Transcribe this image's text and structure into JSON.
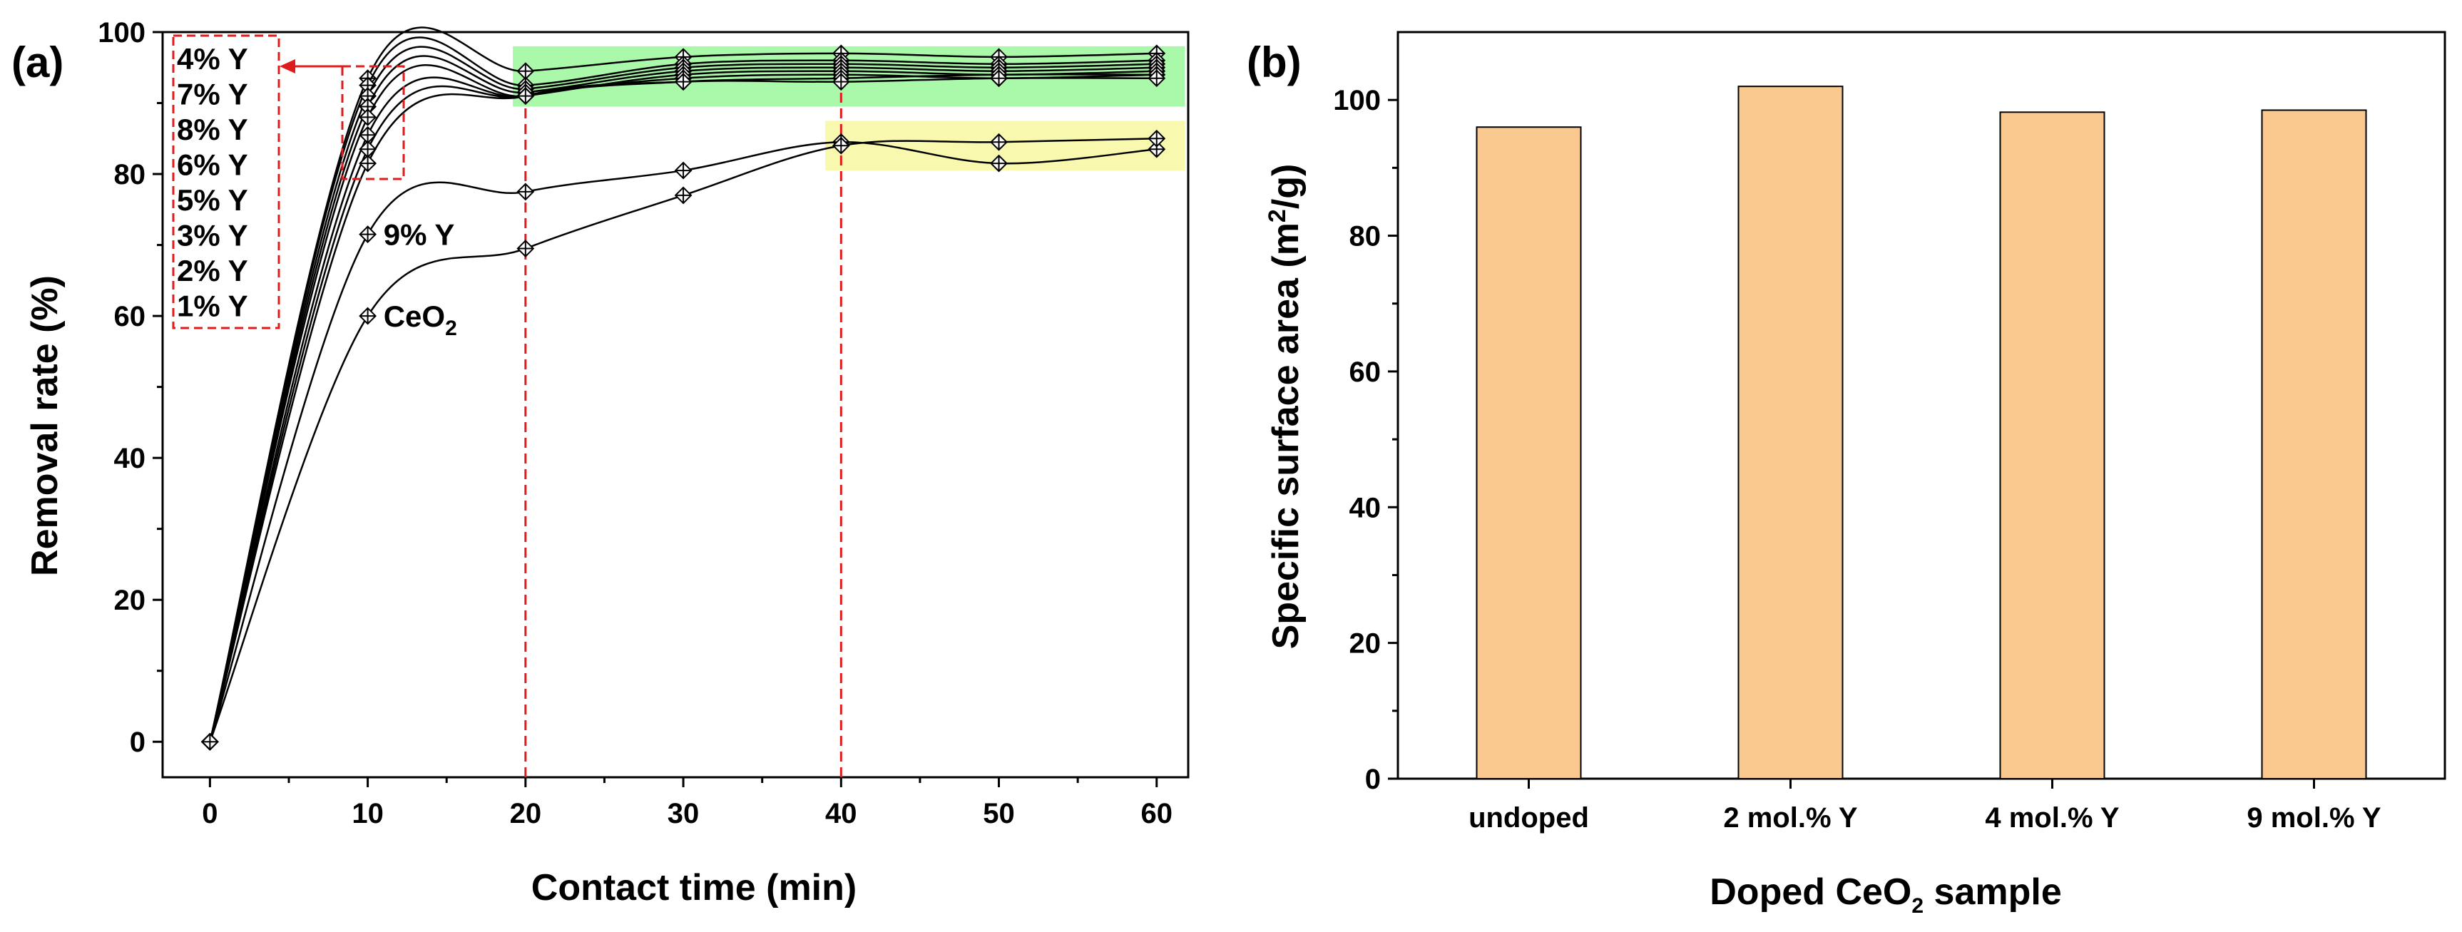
{
  "chart_data": [
    {
      "panel_label": "(a)",
      "type": "line",
      "xlabel": "Contact time (min)",
      "ylabel": "Removal rate (%)",
      "xlim": [
        -3,
        62
      ],
      "ylim": [
        -5,
        100
      ],
      "xticks": [
        0,
        10,
        20,
        30,
        40,
        50,
        60
      ],
      "yticks": [
        0,
        20,
        40,
        60,
        80,
        100
      ],
      "x": [
        0,
        10,
        20,
        30,
        40,
        50,
        60
      ],
      "series": [
        {
          "name": "4% Y",
          "values": [
            0,
            93.5,
            94.5,
            96.5,
            97,
            96.5,
            97
          ]
        },
        {
          "name": "7% Y",
          "values": [
            0,
            92.5,
            92.5,
            95.5,
            96,
            95.5,
            96
          ]
        },
        {
          "name": "8% Y",
          "values": [
            0,
            91,
            92,
            95,
            95.5,
            95,
            95.5
          ]
        },
        {
          "name": "6% Y",
          "values": [
            0,
            89.5,
            91.5,
            94.5,
            95,
            94.5,
            95
          ]
        },
        {
          "name": "5% Y",
          "values": [
            0,
            88,
            91,
            94,
            94.5,
            94,
            94.5
          ]
        },
        {
          "name": "3% Y",
          "values": [
            0,
            85.5,
            91,
            93.5,
            94,
            93.5,
            94
          ]
        },
        {
          "name": "2% Y",
          "values": [
            0,
            83.5,
            91,
            93,
            93.5,
            94,
            94
          ]
        },
        {
          "name": "1% Y",
          "values": [
            0,
            81.5,
            91,
            93,
            93,
            93.5,
            93.5
          ]
        },
        {
          "name": "9% Y",
          "values": [
            0,
            71.5,
            77.5,
            80.5,
            84.5,
            81.5,
            83.5
          ]
        },
        {
          "name": "CeO2",
          "values": [
            0,
            60,
            69.5,
            77,
            84,
            84.5,
            85
          ]
        }
      ],
      "legend_box_entries": [
        "4% Y",
        "7% Y",
        "8% Y",
        "6% Y",
        "5% Y",
        "3% Y",
        "2% Y",
        "1% Y"
      ],
      "inline_labels": {
        "doped_9": {
          "text": "9% Y",
          "x": 11,
          "y": 71.5
        },
        "ceo2": {
          "base": "CeO",
          "subscript": "2",
          "x": 11,
          "y": 60
        }
      },
      "vertical_markers": [
        20,
        40
      ],
      "highlight_green": {
        "x": [
          19.2,
          61.8
        ],
        "y": [
          89.5,
          98
        ],
        "color": "#8ef58e"
      },
      "highlight_yellow": {
        "x": [
          39,
          61.8
        ],
        "y": [
          80.5,
          87.5
        ],
        "color": "#f7f7a0"
      },
      "marker_color": "#ffffff",
      "line_color": "#000000",
      "annotation_color": "#e01b1b",
      "grid": false
    },
    {
      "panel_label": "(b)",
      "type": "bar",
      "categories": [
        "undoped",
        "2 mol.% Y",
        "4 mol.% Y",
        "9 mol.% Y"
      ],
      "values": [
        96,
        102,
        98.2,
        98.5
      ],
      "ylabel_parts": {
        "before": "Specific surface area (m",
        "sup": "2",
        "after": "/g)"
      },
      "xlabel_parts": {
        "before": "Doped CeO",
        "sub": "2",
        "after": " sample"
      },
      "ylim": [
        0,
        110
      ],
      "yticks": [
        0,
        20,
        40,
        60,
        80,
        100
      ],
      "bar_color": "#f9c98f",
      "grid": false
    }
  ]
}
